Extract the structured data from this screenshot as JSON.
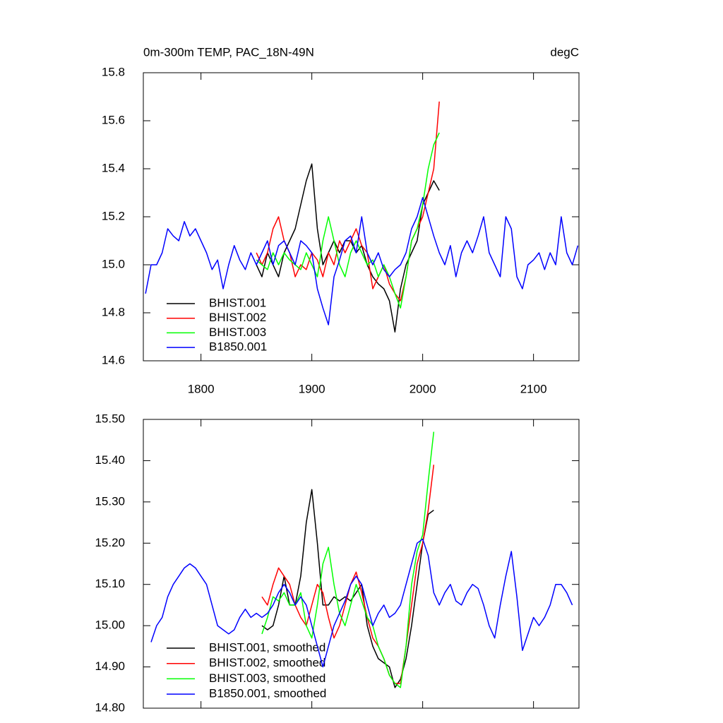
{
  "chart_data": [
    {
      "type": "line",
      "title": "0m-300m TEMP, PAC_18N-49N",
      "subtitle": "degC",
      "x": [
        1750,
        1755,
        1760,
        1765,
        1770,
        1775,
        1780,
        1785,
        1790,
        1795,
        1800,
        1805,
        1810,
        1815,
        1820,
        1825,
        1830,
        1835,
        1840,
        1845,
        1850,
        1855,
        1860,
        1865,
        1870,
        1875,
        1880,
        1885,
        1890,
        1895,
        1900,
        1905,
        1910,
        1915,
        1920,
        1925,
        1930,
        1935,
        1940,
        1945,
        1950,
        1955,
        1960,
        1965,
        1970,
        1975,
        1980,
        1985,
        1990,
        1995,
        2000,
        2005,
        2010,
        2015,
        2020,
        2025,
        2030,
        2035,
        2040,
        2045,
        2050,
        2055,
        2060,
        2065,
        2070,
        2075,
        2080,
        2085,
        2090,
        2095,
        2100,
        2105,
        2110,
        2115,
        2120,
        2125,
        2130,
        2135,
        2140
      ],
      "xlim": [
        1748,
        2141
      ],
      "xticks": [
        1800,
        1900,
        2000,
        2100
      ],
      "ylim": [
        14.6,
        15.8
      ],
      "yticks": [
        14.6,
        14.8,
        {
          "value": 15,
          "label": "15.0"
        },
        15.2,
        15.4,
        15.6,
        15.8
      ],
      "series": [
        {
          "name": "BHIST.001",
          "color": "#000000",
          "values": [
            null,
            null,
            null,
            null,
            null,
            null,
            null,
            null,
            null,
            null,
            null,
            null,
            null,
            null,
            null,
            null,
            null,
            null,
            null,
            null,
            15.0,
            14.95,
            15.05,
            15.0,
            14.95,
            15.05,
            15.1,
            15.15,
            15.25,
            15.35,
            15.42,
            15.15,
            15.0,
            15.05,
            15.1,
            15.05,
            15.1,
            15.1,
            15.05,
            15.08,
            15.0,
            14.95,
            14.92,
            14.9,
            14.85,
            14.72,
            14.9,
            15.0,
            15.05,
            15.1,
            15.25,
            15.3,
            15.35,
            15.31,
            null,
            null,
            null,
            null,
            null,
            null,
            null,
            null,
            null,
            null,
            null,
            null,
            null,
            null,
            null,
            null,
            null,
            null,
            null,
            null,
            null,
            null,
            null,
            null,
            null
          ]
        },
        {
          "name": "BHIST.002",
          "color": "#ff0000",
          "values": [
            null,
            null,
            null,
            null,
            null,
            null,
            null,
            null,
            null,
            null,
            null,
            null,
            null,
            null,
            null,
            null,
            null,
            null,
            null,
            null,
            15.05,
            15.0,
            15.05,
            15.15,
            15.2,
            15.1,
            15.05,
            14.95,
            15.0,
            14.98,
            15.05,
            15.02,
            14.95,
            15.05,
            15.0,
            15.1,
            15.05,
            15.1,
            15.15,
            15.08,
            15.05,
            14.9,
            14.95,
            15.0,
            14.92,
            14.88,
            14.85,
            14.95,
            15.1,
            15.15,
            15.2,
            15.3,
            15.4,
            15.68,
            null,
            null,
            null,
            null,
            null,
            null,
            null,
            null,
            null,
            null,
            null,
            null,
            null,
            null,
            null,
            null,
            null,
            null,
            null,
            null,
            null,
            null,
            null,
            null,
            null
          ]
        },
        {
          "name": "BHIST.003",
          "color": "#00ff00",
          "values": [
            null,
            null,
            null,
            null,
            null,
            null,
            null,
            null,
            null,
            null,
            null,
            null,
            null,
            null,
            null,
            null,
            null,
            null,
            null,
            null,
            15.02,
            15.0,
            14.98,
            15.05,
            15.0,
            15.05,
            15.02,
            15.0,
            14.98,
            15.05,
            15.0,
            14.95,
            15.1,
            15.2,
            15.1,
            15.0,
            14.95,
            15.05,
            15.1,
            15.05,
            15.0,
            15.02,
            14.95,
            15.0,
            14.95,
            14.88,
            14.82,
            14.95,
            15.1,
            15.15,
            15.25,
            15.4,
            15.5,
            15.55,
            null,
            null,
            null,
            null,
            null,
            null,
            null,
            null,
            null,
            null,
            null,
            null,
            null,
            null,
            null,
            null,
            null,
            null,
            null,
            null,
            null,
            null,
            null,
            null,
            null
          ]
        },
        {
          "name": "B1850.001",
          "color": "#0000ff",
          "values": [
            14.88,
            15.0,
            15.0,
            15.05,
            15.15,
            15.12,
            15.1,
            15.18,
            15.12,
            15.15,
            15.1,
            15.05,
            14.98,
            15.02,
            14.9,
            15.0,
            15.08,
            15.02,
            14.98,
            15.05,
            15.0,
            15.05,
            15.1,
            15.0,
            15.08,
            15.1,
            15.05,
            15.0,
            15.1,
            15.08,
            15.05,
            14.9,
            14.82,
            14.75,
            14.95,
            15.02,
            15.1,
            15.12,
            15.05,
            15.2,
            15.05,
            15.0,
            15.05,
            14.98,
            14.95,
            14.98,
            15.0,
            15.05,
            15.15,
            15.2,
            15.28,
            15.2,
            15.12,
            15.05,
            15.0,
            15.08,
            14.95,
            15.05,
            15.1,
            15.05,
            15.12,
            15.2,
            15.05,
            15.0,
            14.95,
            15.2,
            15.15,
            14.95,
            14.9,
            15.0,
            15.02,
            15.05,
            14.98,
            15.05,
            15.0,
            15.2,
            15.05,
            15.0,
            15.08
          ]
        }
      ]
    },
    {
      "type": "line",
      "x": [
        1750,
        1755,
        1760,
        1765,
        1770,
        1775,
        1780,
        1785,
        1790,
        1795,
        1800,
        1805,
        1810,
        1815,
        1820,
        1825,
        1830,
        1835,
        1840,
        1845,
        1850,
        1855,
        1860,
        1865,
        1870,
        1875,
        1880,
        1885,
        1890,
        1895,
        1900,
        1905,
        1910,
        1915,
        1920,
        1925,
        1930,
        1935,
        1940,
        1945,
        1950,
        1955,
        1960,
        1965,
        1970,
        1975,
        1980,
        1985,
        1990,
        1995,
        2000,
        2005,
        2010,
        2015,
        2020,
        2025,
        2030,
        2035,
        2040,
        2045,
        2050,
        2055,
        2060,
        2065,
        2070,
        2075,
        2080,
        2085,
        2090,
        2095,
        2100,
        2105,
        2110,
        2115,
        2120,
        2125,
        2130,
        2135,
        2140
      ],
      "xlim": [
        1748,
        2141
      ],
      "xticks": [
        1800,
        1900,
        2000,
        2100
      ],
      "ylim": [
        14.8,
        15.5
      ],
      "yticks": [
        {
          "value": 14.8,
          "label": "14.80"
        },
        {
          "value": 14.9,
          "label": "14.90"
        },
        {
          "value": 15,
          "label": "15.00"
        },
        {
          "value": 15.1,
          "label": "15.10"
        },
        {
          "value": 15.2,
          "label": "15.20"
        },
        {
          "value": 15.3,
          "label": "15.30"
        },
        {
          "value": 15.4,
          "label": "15.40"
        },
        {
          "value": 15.5,
          "label": "15.50"
        }
      ],
      "series": [
        {
          "name": "BHIST.001, smoothed",
          "color": "#000000",
          "values": [
            null,
            null,
            null,
            null,
            null,
            null,
            null,
            null,
            null,
            null,
            null,
            null,
            null,
            null,
            null,
            null,
            null,
            null,
            null,
            null,
            null,
            15.0,
            14.99,
            15.0,
            15.05,
            15.12,
            15.05,
            15.05,
            15.12,
            15.25,
            15.33,
            15.2,
            15.05,
            15.05,
            15.07,
            15.06,
            15.07,
            15.06,
            15.08,
            15.1,
            15.0,
            14.95,
            14.92,
            14.91,
            14.9,
            14.85,
            14.87,
            14.92,
            15.0,
            15.1,
            15.2,
            15.27,
            15.28,
            null,
            null,
            null,
            null,
            null,
            null,
            null,
            null,
            null,
            null,
            null,
            null,
            null,
            null,
            null,
            null,
            null,
            null,
            null,
            null,
            null,
            null,
            null,
            null,
            null,
            null
          ]
        },
        {
          "name": "BHIST.002, smoothed",
          "color": "#ff0000",
          "values": [
            null,
            null,
            null,
            null,
            null,
            null,
            null,
            null,
            null,
            null,
            null,
            null,
            null,
            null,
            null,
            null,
            null,
            null,
            null,
            null,
            null,
            15.07,
            15.05,
            15.1,
            15.14,
            15.12,
            15.1,
            15.05,
            15.02,
            15.0,
            15.05,
            15.1,
            15.08,
            15.02,
            14.97,
            15.0,
            15.05,
            15.1,
            15.13,
            15.08,
            15.02,
            14.97,
            14.95,
            14.92,
            14.88,
            14.86,
            14.86,
            14.95,
            15.05,
            15.15,
            15.2,
            15.28,
            15.39,
            null,
            null,
            null,
            null,
            null,
            null,
            null,
            null,
            null,
            null,
            null,
            null,
            null,
            null,
            null,
            null,
            null,
            null,
            null,
            null,
            null,
            null,
            null,
            null,
            null,
            null
          ]
        },
        {
          "name": "BHIST.003, smoothed",
          "color": "#00ff00",
          "values": [
            null,
            null,
            null,
            null,
            null,
            null,
            null,
            null,
            null,
            null,
            null,
            null,
            null,
            null,
            null,
            null,
            null,
            null,
            null,
            null,
            null,
            14.98,
            15.02,
            15.07,
            15.06,
            15.08,
            15.05,
            15.05,
            15.08,
            15.0,
            14.97,
            15.05,
            15.15,
            15.19,
            15.1,
            15.03,
            15.0,
            15.05,
            15.1,
            15.06,
            15.02,
            15.0,
            14.95,
            14.92,
            14.88,
            14.86,
            14.85,
            14.95,
            15.1,
            15.18,
            15.22,
            15.35,
            15.47,
            null,
            null,
            null,
            null,
            null,
            null,
            null,
            null,
            null,
            null,
            null,
            null,
            null,
            null,
            null,
            null,
            null,
            null,
            null,
            null,
            null,
            null,
            null,
            null,
            null,
            null
          ]
        },
        {
          "name": "B1850.001, smoothed",
          "color": "#0000ff",
          "values": [
            null,
            14.96,
            15.0,
            15.02,
            15.07,
            15.1,
            15.12,
            15.14,
            15.15,
            15.14,
            15.12,
            15.1,
            15.05,
            15.0,
            14.99,
            14.98,
            14.99,
            15.02,
            15.04,
            15.02,
            15.03,
            15.02,
            15.03,
            15.05,
            15.08,
            15.1,
            15.08,
            15.05,
            15.07,
            15.05,
            15.0,
            14.95,
            14.9,
            14.95,
            15.0,
            15.03,
            15.06,
            15.1,
            15.12,
            15.1,
            15.05,
            15.0,
            15.03,
            15.05,
            15.02,
            15.03,
            15.05,
            15.1,
            15.15,
            15.2,
            15.21,
            15.17,
            15.08,
            15.05,
            15.08,
            15.1,
            15.06,
            15.05,
            15.08,
            15.1,
            15.09,
            15.05,
            15.0,
            14.97,
            15.05,
            15.12,
            15.18,
            15.07,
            14.94,
            14.98,
            15.02,
            15.0,
            15.02,
            15.05,
            15.1,
            15.1,
            15.08,
            15.05,
            null
          ]
        }
      ]
    }
  ]
}
